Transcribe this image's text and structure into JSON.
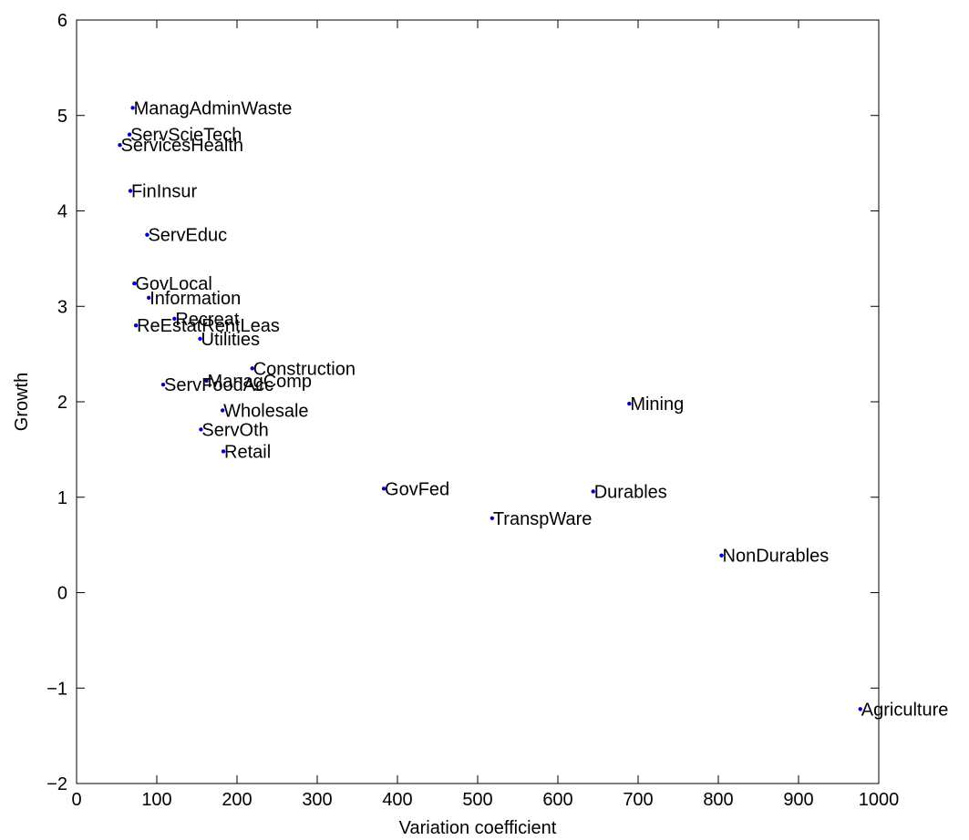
{
  "chart_data": {
    "type": "scatter",
    "title": "",
    "xlabel": "Variation coefficient",
    "ylabel": "Growth",
    "xlim": [
      0,
      1000
    ],
    "ylim": [
      -2,
      6
    ],
    "xticks": [
      0,
      100,
      200,
      300,
      400,
      500,
      600,
      700,
      800,
      900,
      1000
    ],
    "yticks": [
      -2,
      -1,
      0,
      1,
      2,
      3,
      4,
      5,
      6
    ],
    "xtick_labels": [
      "0",
      "100",
      "200",
      "300",
      "400",
      "500",
      "600",
      "700",
      "800",
      "900",
      "1000"
    ],
    "ytick_labels": [
      "−2",
      "−1",
      "0",
      "1",
      "2",
      "3",
      "4",
      "5",
      "6"
    ],
    "grid": false,
    "marker_color": "#0000cc",
    "points": [
      {
        "label": "ManagAdminWaste",
        "x": 70,
        "y": 5.08
      },
      {
        "label": "ServScieTech",
        "x": 66,
        "y": 4.8
      },
      {
        "label": "ServicesHealth",
        "x": 54,
        "y": 4.69
      },
      {
        "label": "FinInsur",
        "x": 67,
        "y": 4.21
      },
      {
        "label": "ServEduc",
        "x": 88,
        "y": 3.75
      },
      {
        "label": "GovLocal",
        "x": 72,
        "y": 3.24
      },
      {
        "label": "Information",
        "x": 90,
        "y": 3.09
      },
      {
        "label": "Recreat",
        "x": 122,
        "y": 2.87
      },
      {
        "label": "ReEstatRentLeas",
        "x": 74,
        "y": 2.8
      },
      {
        "label": "Utilities",
        "x": 154,
        "y": 2.66
      },
      {
        "label": "Construction",
        "x": 219,
        "y": 2.35
      },
      {
        "label": "ManagComp",
        "x": 162,
        "y": 2.22
      },
      {
        "label": "ServFoodAcc",
        "x": 108,
        "y": 2.18
      },
      {
        "label": "Wholesale",
        "x": 182,
        "y": 1.91
      },
      {
        "label": "ServOth",
        "x": 155,
        "y": 1.71
      },
      {
        "label": "Retail",
        "x": 183,
        "y": 1.48
      },
      {
        "label": "GovFed",
        "x": 383,
        "y": 1.09
      },
      {
        "label": "TranspWare",
        "x": 518,
        "y": 0.78
      },
      {
        "label": "Durables",
        "x": 644,
        "y": 1.06
      },
      {
        "label": "Mining",
        "x": 689,
        "y": 1.98
      },
      {
        "label": "NonDurables",
        "x": 804,
        "y": 0.39
      },
      {
        "label": "Agriculture",
        "x": 977,
        "y": -1.22
      }
    ]
  }
}
